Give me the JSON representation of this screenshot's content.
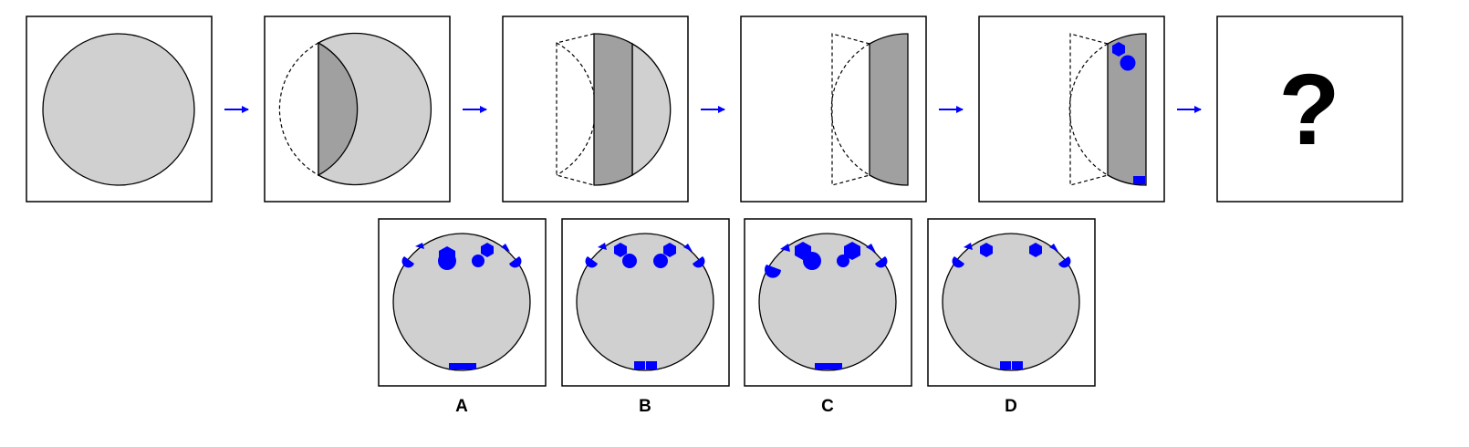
{
  "colors": {
    "circle_fill": "#d0d0d0",
    "strip_fill": "#a0a0a0",
    "shape_fill": "#0000ff",
    "arrow": "#0000ff",
    "stroke": "#000000"
  },
  "sequence": {
    "question_mark": "?",
    "arrow_icon": "right-arrow-icon"
  },
  "options": {
    "labels": [
      "A",
      "B",
      "C",
      "D"
    ]
  }
}
